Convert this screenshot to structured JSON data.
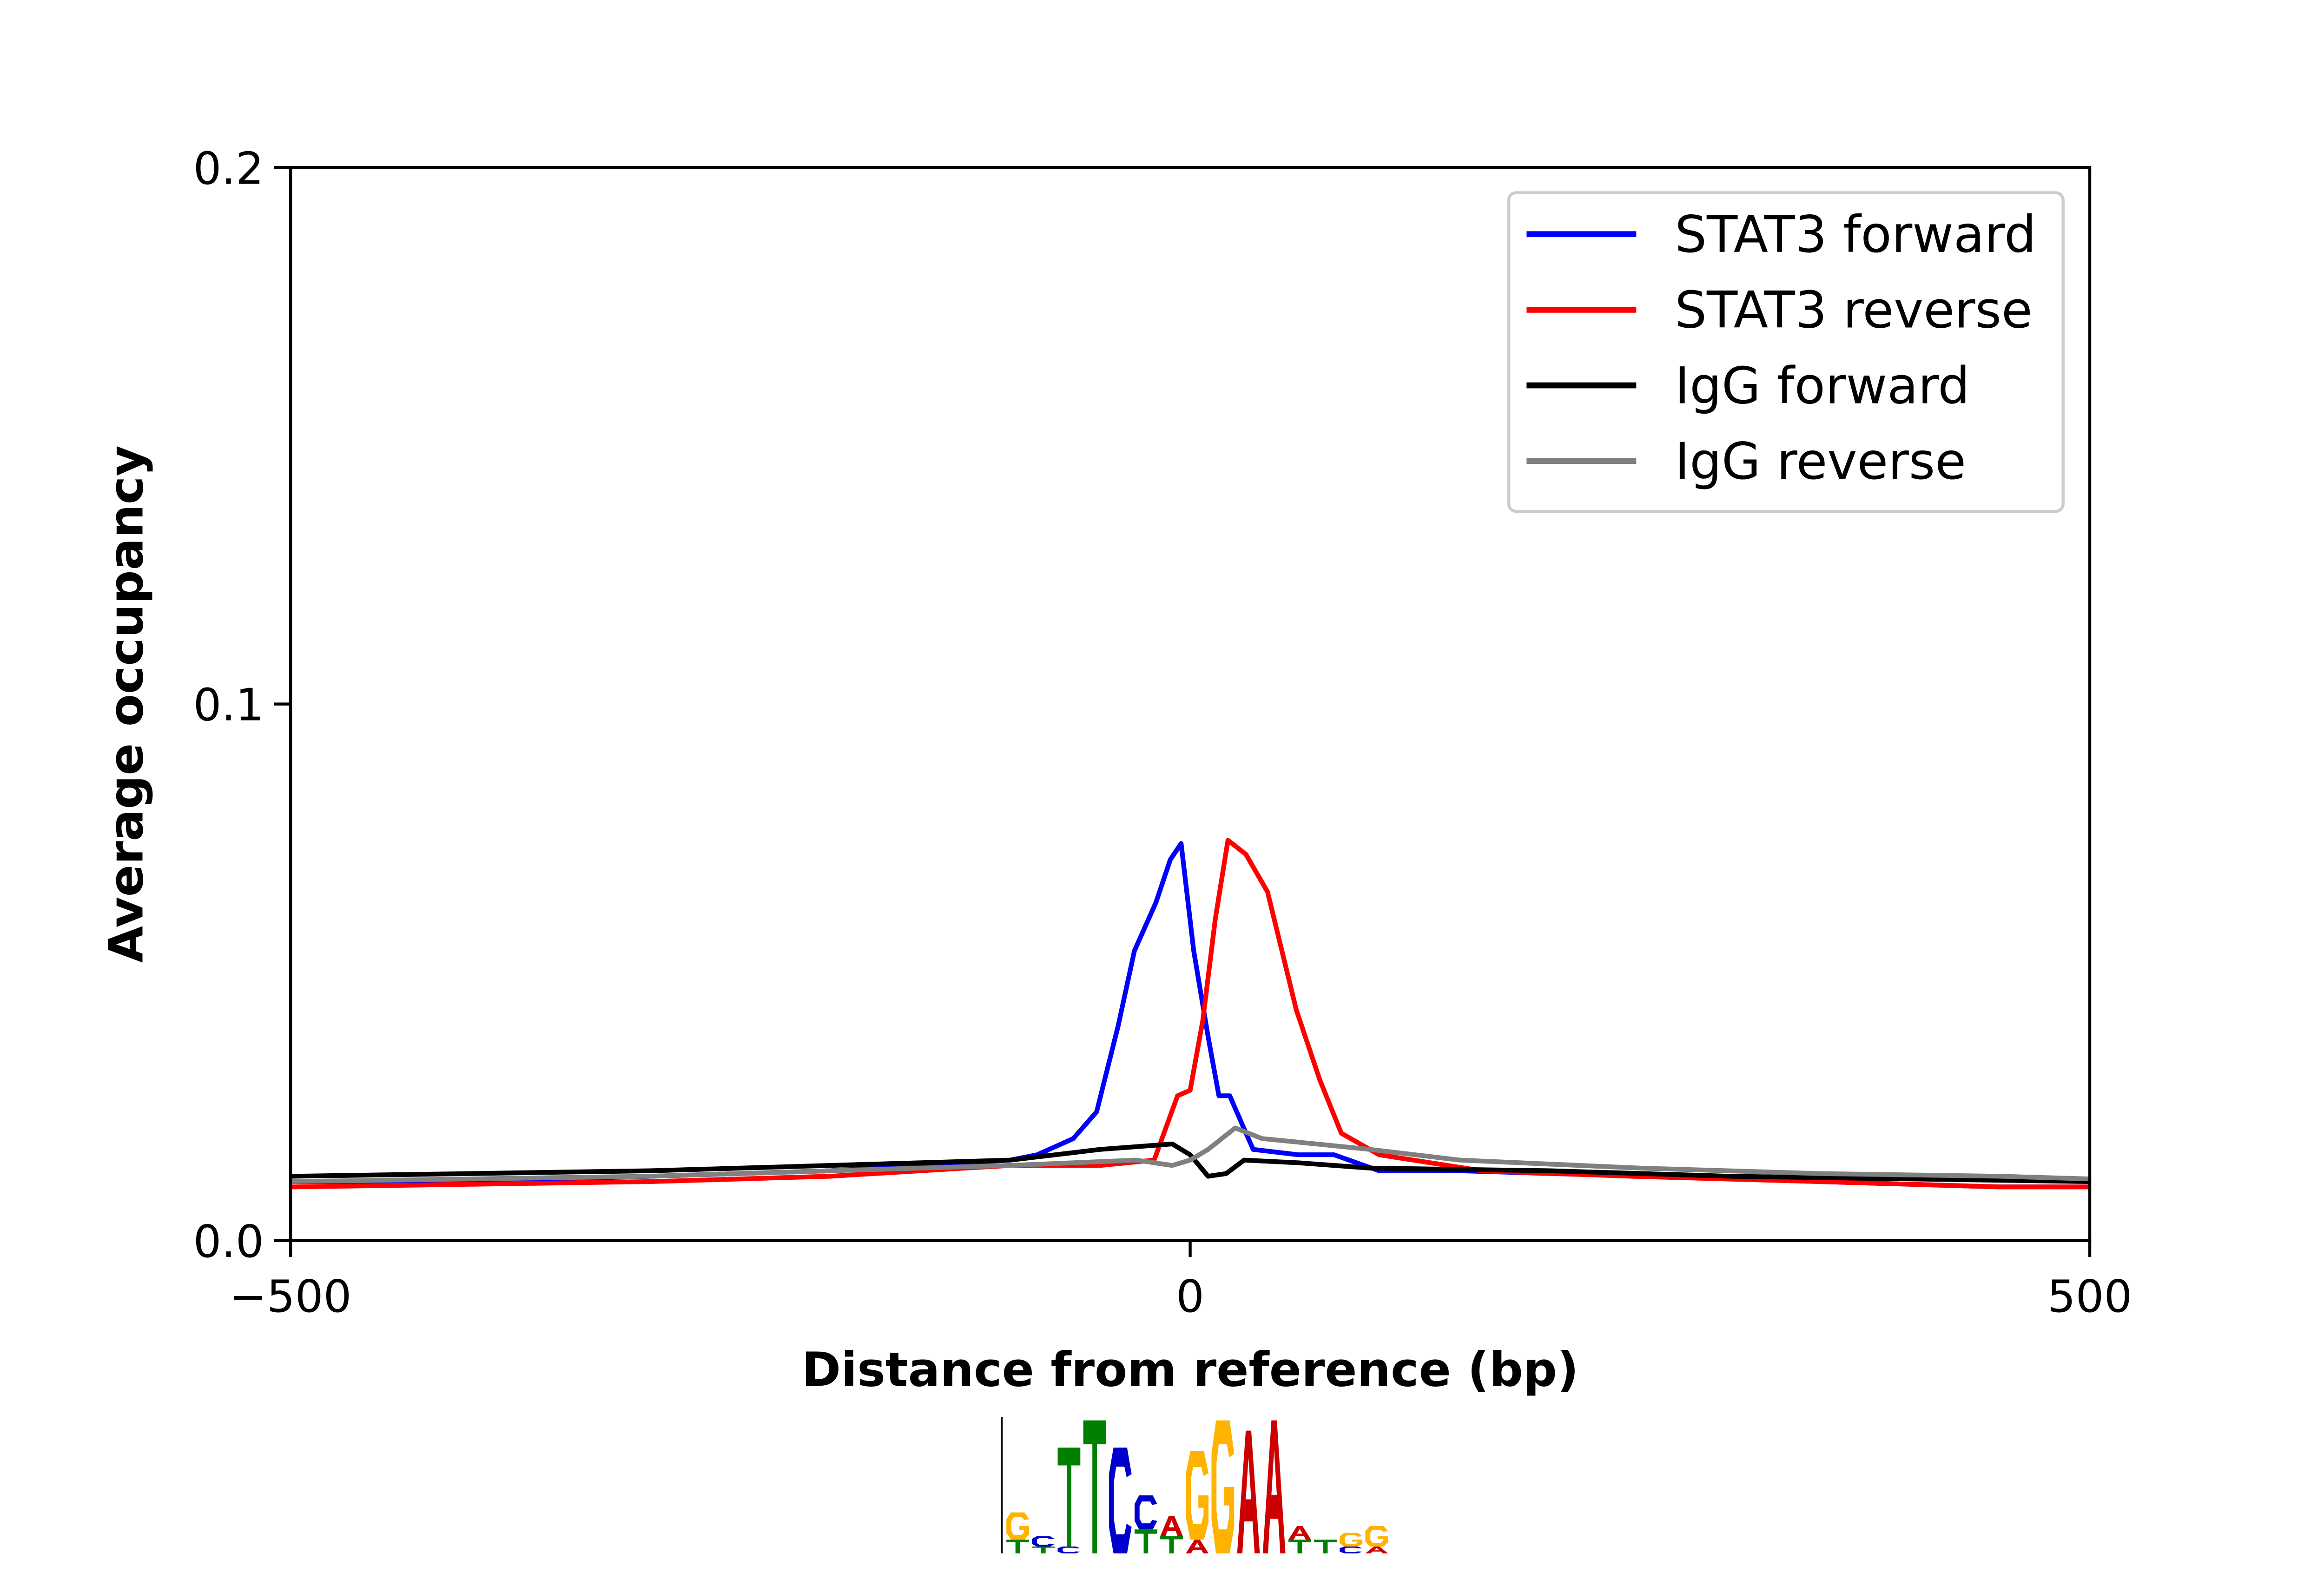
{
  "chart_data": {
    "type": "line",
    "title": "",
    "xlabel": "Distance from reference (bp)",
    "ylabel": "Average occupancy",
    "xlim": [
      -500,
      500
    ],
    "ylim": [
      0.0,
      0.2
    ],
    "xticks": [
      -500,
      0,
      500
    ],
    "xtick_labels": [
      "−500",
      "0",
      "500"
    ],
    "yticks": [
      0.0,
      0.1,
      0.2
    ],
    "ytick_labels": [
      "0.0",
      "0.1",
      "0.2"
    ],
    "grid": false,
    "legend_position": "top-right",
    "series": [
      {
        "name": "STAT3 forward",
        "color": "#0000ff",
        "x": [
          -500,
          -400,
          -300,
          -200,
          -150,
          -100,
          -85,
          -65,
          -52,
          -40,
          -31,
          -19,
          -11,
          -5,
          2,
          10,
          16,
          22,
          35,
          60,
          80,
          105,
          150,
          250,
          350,
          450,
          500
        ],
        "y": [
          0.011,
          0.011,
          0.012,
          0.013,
          0.014,
          0.015,
          0.016,
          0.019,
          0.024,
          0.04,
          0.054,
          0.063,
          0.071,
          0.074,
          0.054,
          0.038,
          0.027,
          0.027,
          0.017,
          0.016,
          0.016,
          0.013,
          0.013,
          0.012,
          0.011,
          0.01,
          0.01
        ]
      },
      {
        "name": "STAT3 reverse",
        "color": "#ff0000",
        "x": [
          -500,
          -400,
          -300,
          -200,
          -150,
          -100,
          -50,
          -20,
          -7,
          0,
          7,
          14,
          21,
          31,
          43,
          59,
          72,
          84,
          105,
          162,
          245,
          350,
          450,
          500
        ],
        "y": [
          0.01,
          0.0105,
          0.011,
          0.012,
          0.013,
          0.014,
          0.014,
          0.015,
          0.027,
          0.028,
          0.041,
          0.06,
          0.0746,
          0.072,
          0.065,
          0.043,
          0.03,
          0.02,
          0.016,
          0.013,
          0.012,
          0.011,
          0.01,
          0.01
        ]
      },
      {
        "name": "IgG forward",
        "color": "#000000",
        "x": [
          -500,
          -400,
          -300,
          -200,
          -100,
          -50,
          -10,
          0,
          10,
          20,
          30,
          60,
          100,
          200,
          300,
          400,
          500
        ],
        "y": [
          0.012,
          0.0125,
          0.013,
          0.014,
          0.015,
          0.017,
          0.018,
          0.016,
          0.012,
          0.0125,
          0.015,
          0.0145,
          0.0135,
          0.013,
          0.012,
          0.0115,
          0.011
        ]
      },
      {
        "name": "IgG reverse",
        "color": "#808080",
        "x": [
          -500,
          -400,
          -300,
          -200,
          -100,
          -30,
          -10,
          0,
          10,
          25,
          40,
          70,
          100,
          150,
          250,
          350,
          450,
          500
        ],
        "y": [
          0.011,
          0.0115,
          0.012,
          0.013,
          0.014,
          0.015,
          0.014,
          0.015,
          0.017,
          0.021,
          0.019,
          0.018,
          0.017,
          0.015,
          0.0135,
          0.0125,
          0.012,
          0.0115
        ]
      }
    ]
  },
  "motif_logo": {
    "colors": {
      "A": "#cc0000",
      "C": "#0000cc",
      "G": "#ffb300",
      "T": "#008000"
    },
    "columns": [
      [
        [
          "T",
          0.2
        ],
        [
          "G",
          0.4
        ]
      ],
      [
        [
          "T",
          0.1
        ],
        [
          "C",
          0.15
        ]
      ],
      [
        [
          "C",
          0.1
        ],
        [
          "T",
          1.45
        ]
      ],
      [
        [
          "T",
          1.95
        ]
      ],
      [
        [
          "C",
          1.55
        ]
      ],
      [
        [
          "T",
          0.35
        ],
        [
          "C",
          0.5
        ]
      ],
      [
        [
          "T",
          0.25
        ],
        [
          "A",
          0.3
        ]
      ],
      [
        [
          "A",
          0.2
        ],
        [
          "G",
          1.3
        ]
      ],
      [
        [
          "G",
          1.95
        ]
      ],
      [
        [
          "A",
          1.8
        ]
      ],
      [
        [
          "A",
          1.95
        ]
      ],
      [
        [
          "T",
          0.2
        ],
        [
          "A",
          0.2
        ]
      ],
      [
        [
          "T",
          0.2
        ]
      ],
      [
        [
          "C",
          0.1
        ],
        [
          "G",
          0.2
        ]
      ],
      [
        [
          "A",
          0.1
        ],
        [
          "G",
          0.3
        ]
      ]
    ]
  }
}
